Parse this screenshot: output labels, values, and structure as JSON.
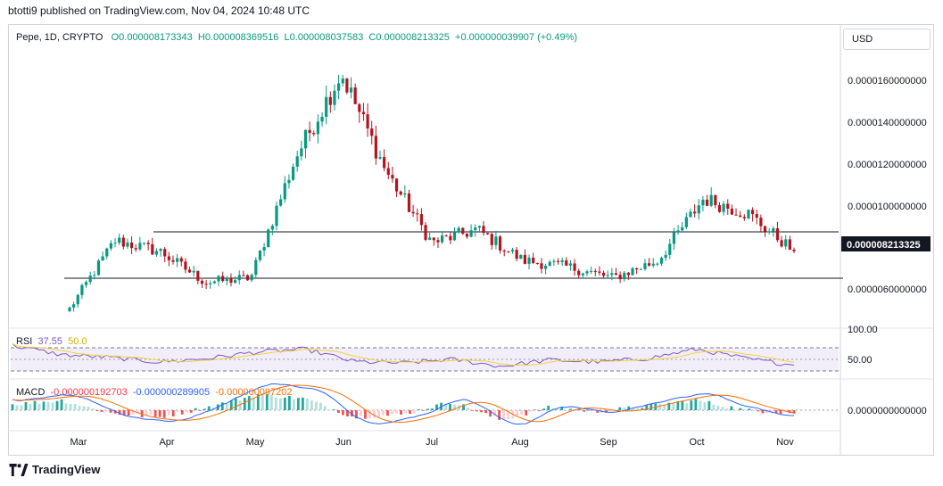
{
  "header": {
    "text": "btotti9 published on TradingView.com, Nov 04, 2024 10:48 UTC"
  },
  "legend": {
    "symbol": "Pepe, 1D, CRYPTO",
    "open": "O0.000008173343",
    "high": "H0.000008369516",
    "low": "L0.000008037583",
    "close": "C0.000008213325",
    "change": "+0.000000039907 (+0.49%)"
  },
  "currency": "USD",
  "price_axis": {
    "labels": [
      "0.0000160000000",
      "0.0000140000000",
      "0.0000120000000",
      "0.0000100000000",
      "0.0000060000000"
    ],
    "current_price_label": "0.000008213325"
  },
  "rsi": {
    "label": "RSI",
    "value": "37.55",
    "ma_value": "50.0",
    "axis_labels": [
      "100.00",
      "50.00"
    ]
  },
  "macd": {
    "label": "MACD",
    "histogram": "-0.000000192703",
    "macd_line": "-0.000000289905",
    "signal": "-0.000000097202",
    "axis_label": "0.0000000000000"
  },
  "time_axis": {
    "labels": [
      "Mar",
      "Apr",
      "May",
      "Jun",
      "Jul",
      "Aug",
      "Sep",
      "Oct",
      "Nov"
    ]
  },
  "footer": {
    "brand": "TradingView"
  },
  "colors": {
    "up": "#089981",
    "down": "#b2151f",
    "rsi": "#7e57c2",
    "rsi_ma": "#f2d33b",
    "macd": "#2962ff",
    "signal": "#ff6d00"
  },
  "chart_data": [
    {
      "type": "candlestick",
      "title": "Pepe, 1D, CRYPTO",
      "x": [
        "2024-03-01",
        "2024-03-15",
        "2024-04-01",
        "2024-04-15",
        "2024-05-01",
        "2024-05-15",
        "2024-05-27",
        "2024-06-15",
        "2024-07-01",
        "2024-07-15",
        "2024-08-01",
        "2024-08-15",
        "2024-09-01",
        "2024-09-15",
        "2024-10-01",
        "2024-10-15",
        "2024-11-04"
      ],
      "close": [
        5.6e-06,
        8.7e-06,
        8.2e-06,
        6.8e-06,
        7e-06,
        1.25e-05,
        1.63e-05,
        1.18e-05,
        8.6e-06,
        9.2e-06,
        7.8e-06,
        7.5e-06,
        7e-06,
        7.8e-06,
        1.06e-05,
        9.9e-06,
        8.213325e-06
      ],
      "horizontal_lines": [
        8.7e-06,
        6.6e-06
      ],
      "ylim": [
        4.8e-06,
        1.8e-05
      ]
    },
    {
      "type": "line",
      "title": "RSI",
      "series": [
        {
          "name": "RSI",
          "values": [
            80,
            60,
            54,
            44,
            52,
            66,
            72,
            45,
            42,
            50,
            35,
            49,
            44,
            52,
            72,
            52,
            37.55
          ]
        }
      ],
      "levels": [
        70,
        50,
        30
      ],
      "ylim": [
        0,
        100
      ]
    },
    {
      "type": "bar",
      "title": "MACD",
      "series": [
        {
          "name": "Histogram",
          "values": [
            0.4,
            0.7,
            -0.2,
            -0.5,
            0.2,
            1.1,
            0.8,
            -0.5,
            -0.3,
            0.6,
            -0.7,
            0.2,
            -0.1,
            0.3,
            0.7,
            0.0,
            -0.19
          ]
        }
      ]
    }
  ]
}
